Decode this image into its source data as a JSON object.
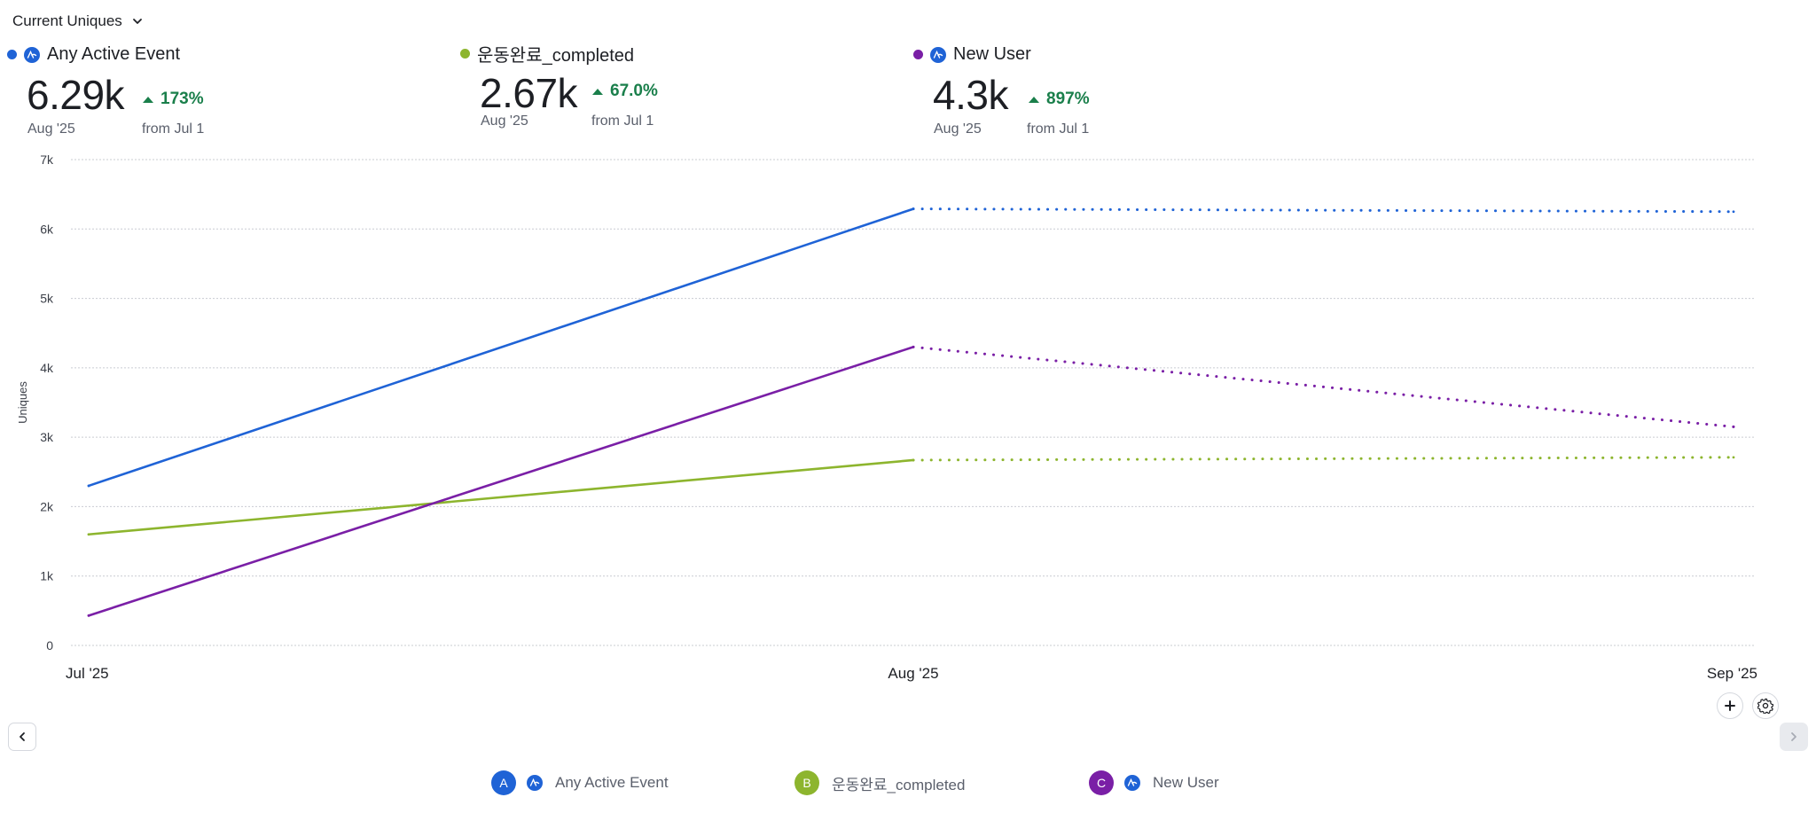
{
  "header": {
    "metric_selector": "Current Uniques"
  },
  "kpis": [
    {
      "name": "Any Active Event",
      "color": "#1f63d6",
      "has_event_icon": true,
      "value": "6.29k",
      "period": "Aug '25",
      "delta": "173%",
      "from": "from Jul 1"
    },
    {
      "name": "운동완료_completed",
      "color": "#8db52e",
      "has_event_icon": false,
      "value": "2.67k",
      "period": "Aug '25",
      "delta": "67.0%",
      "from": "from Jul 1"
    },
    {
      "name": "New User",
      "color": "#7a1fa6",
      "has_event_icon": true,
      "value": "4.3k",
      "period": "Aug '25",
      "delta": "897%",
      "from": "from Jul 1"
    }
  ],
  "chart_data": {
    "type": "line",
    "title": "Current Uniques",
    "xlabel": "",
    "ylabel": "Uniques",
    "categories": [
      "Jul '25",
      "Aug '25",
      "Sep '25"
    ],
    "yticks": [
      "0",
      "1k",
      "2k",
      "3k",
      "4k",
      "5k",
      "6k",
      "7k"
    ],
    "ylim": [
      0,
      7000
    ],
    "grid": true,
    "forecast_note": "Sep '25 segment is dotted (incomplete period)",
    "series": [
      {
        "name": "Any Active Event",
        "color": "#1f63d6",
        "values": [
          2300,
          6290,
          6250
        ]
      },
      {
        "name": "운동완료_completed",
        "color": "#8db52e",
        "values": [
          1600,
          2670,
          2710
        ]
      },
      {
        "name": "New User",
        "color": "#7a1fa6",
        "values": [
          430,
          4300,
          3150
        ]
      }
    ]
  },
  "legend": [
    {
      "letter": "A",
      "name": "Any Active Event",
      "color": "#1f63d6",
      "has_event_icon": true
    },
    {
      "letter": "B",
      "name": "운동완료_completed",
      "color": "#8db52e",
      "has_event_icon": false
    },
    {
      "letter": "C",
      "name": "New User",
      "color": "#7a1fa6",
      "has_event_icon": true
    }
  ],
  "controls": {
    "add_icon": "plus-icon",
    "settings_icon": "gear-icon",
    "prev_icon": "chevron-left-icon",
    "next_icon": "chevron-right-icon"
  }
}
